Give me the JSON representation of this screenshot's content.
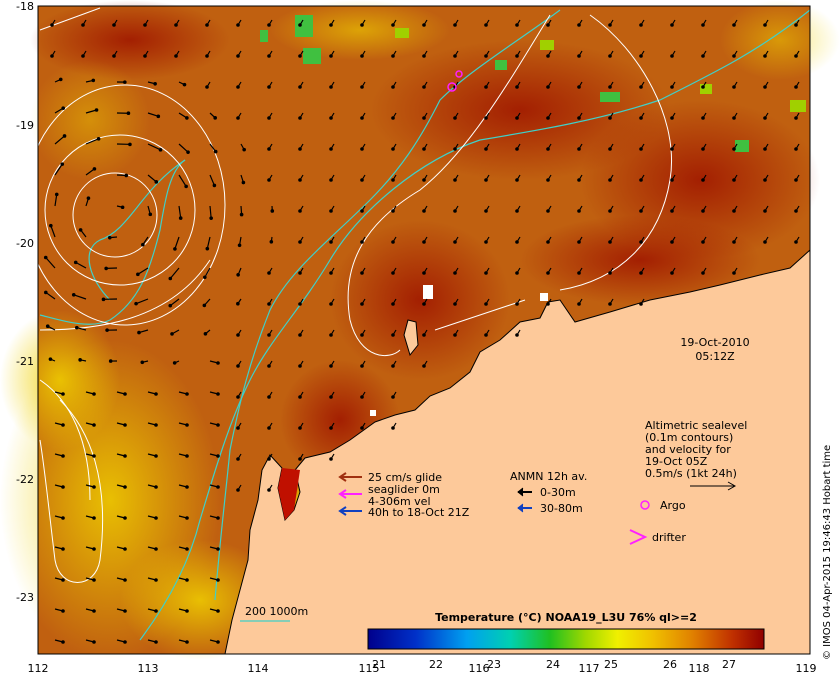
{
  "axes": {
    "lon_ticks": [
      "112",
      "113",
      "114",
      "115",
      "116",
      "117",
      "118",
      "119"
    ],
    "lat_ticks": [
      "-18",
      "-19",
      "-20",
      "-21",
      "-22",
      "-23"
    ]
  },
  "timestamp": {
    "date": "19-Oct-2010",
    "time": "05:12Z"
  },
  "altimetry_legend": {
    "line1": "Altimetric sealevel",
    "line2": "(0.1m contours)",
    "line3": "and velocity for",
    "line4": "19-Oct 05Z",
    "line5": "0.5m/s (1kt 24h)"
  },
  "glider_legend": {
    "line1": "25 cm/s glide",
    "line2": "seaglider 0m",
    "line3": "4-306m vel",
    "line4": "40h to 18-Oct 21Z"
  },
  "anmn_legend": {
    "title": "ANMN 12h av.",
    "item1": "0-30m",
    "item2": "30-80m"
  },
  "markers": {
    "argo": "Argo",
    "drifter": "drifter"
  },
  "isobath_label": "200  1000m",
  "colorbar": {
    "title": "Temperature (°C) NOAA19_L3U 76% ql>=2",
    "ticks": [
      "21",
      "22",
      "23",
      "24",
      "25",
      "26",
      "27"
    ]
  },
  "credit": "© IMOS 04-Apr-2015 19:46:43 Hobart time",
  "colors": {
    "land": "#fdc99a",
    "isobath": "#40d0c8",
    "contour": "#ffffff",
    "glider_brown": "#a03010",
    "glider_magenta": "#ff20ff",
    "glider_blue": "#1040c0"
  }
}
